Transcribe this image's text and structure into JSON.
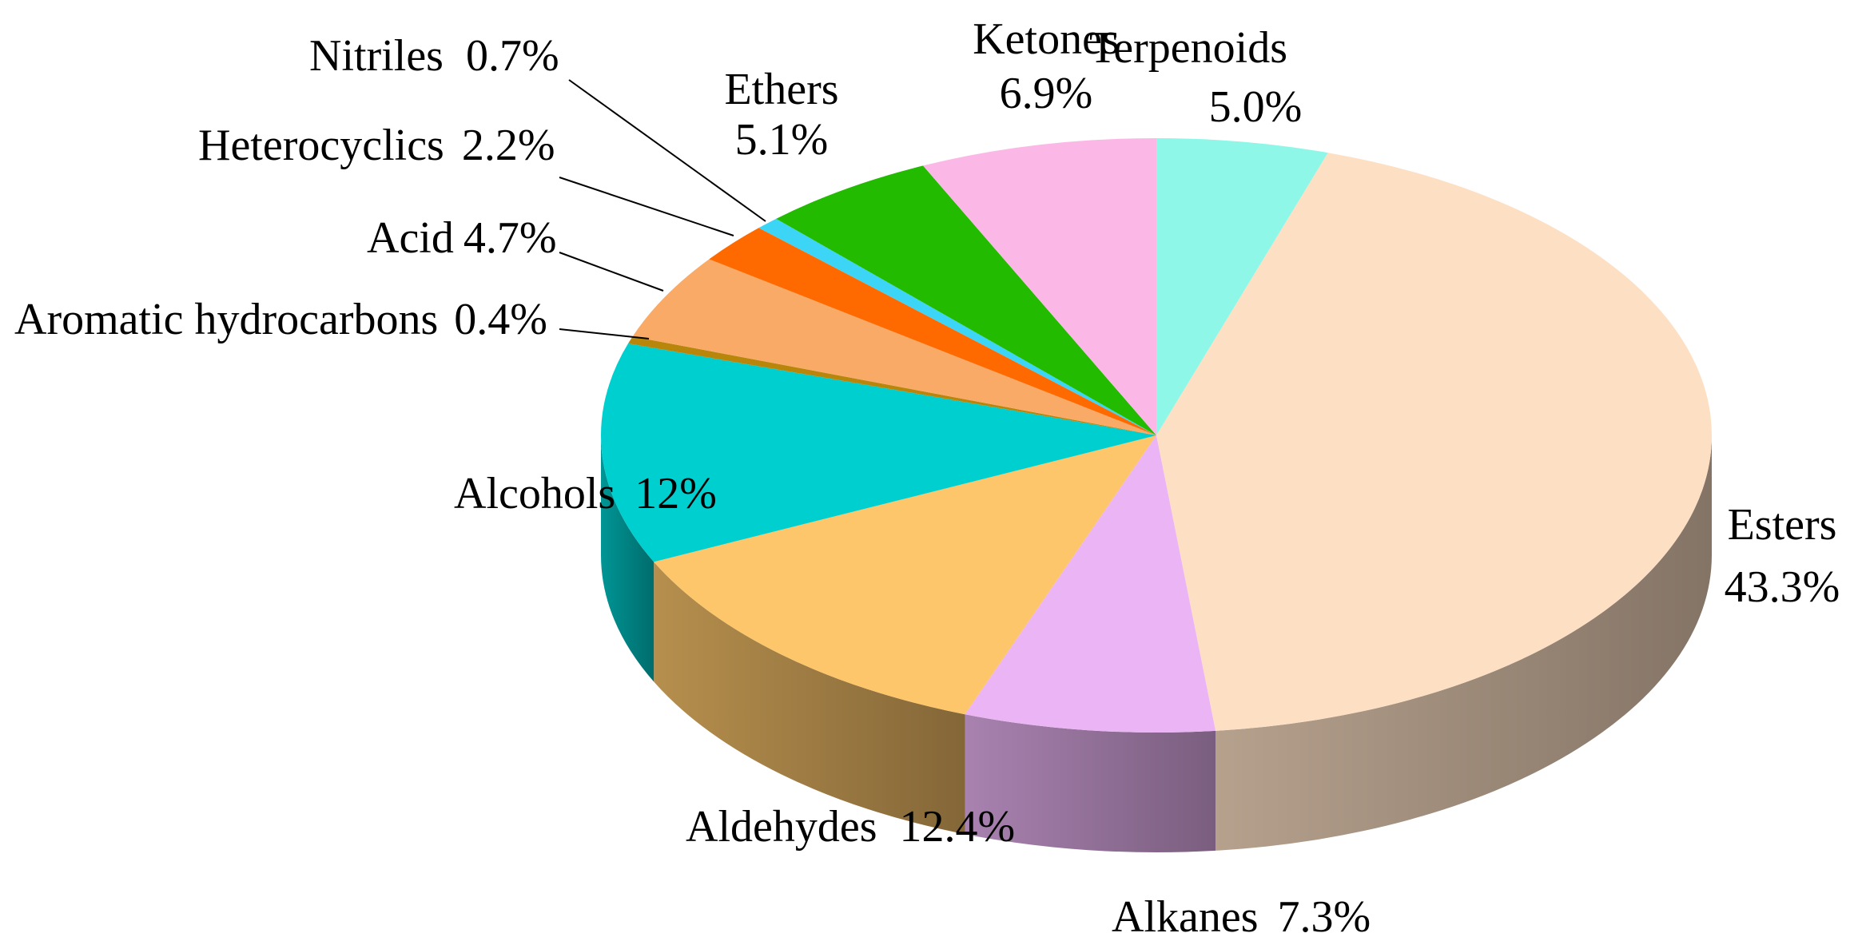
{
  "chart_data": {
    "type": "pie",
    "style": "3d",
    "title": "",
    "slices": [
      {
        "label": "Terpenoids",
        "value": 5.0,
        "value_label": "5.0%",
        "color": "#8ef7e8"
      },
      {
        "label": "Esters",
        "value": 43.3,
        "value_label": "43.3%",
        "color": "#fde0c4"
      },
      {
        "label": "Alkanes",
        "value": 7.3,
        "value_label": "7.3%",
        "color": "#ebb5f5"
      },
      {
        "label": "Aldehydes",
        "value": 12.4,
        "value_label": "12.4%",
        "color": "#fdc66b"
      },
      {
        "label": "Alcohols",
        "value": 12,
        "value_label": "12%",
        "color": "#00cfcf"
      },
      {
        "label": "Aromatic hydrocarbons",
        "value": 0.4,
        "value_label": "0.4%",
        "color": "#b8860b"
      },
      {
        "label": "Acid",
        "value": 4.7,
        "value_label": "4.7%",
        "color": "#f9aa66"
      },
      {
        "label": "Heterocyclics",
        "value": 2.2,
        "value_label": "2.2%",
        "color": "#ff6a00"
      },
      {
        "label": "Nitriles",
        "value": 0.7,
        "value_label": "0.7%",
        "color": "#3cd5f5"
      },
      {
        "label": "Ethers",
        "value": 5.1,
        "value_label": "5.1%",
        "color": "#22bb00"
      },
      {
        "label": "Ketones",
        "value": 6.9,
        "value_label": "6.9%",
        "color": "#fbb8e6"
      }
    ]
  }
}
